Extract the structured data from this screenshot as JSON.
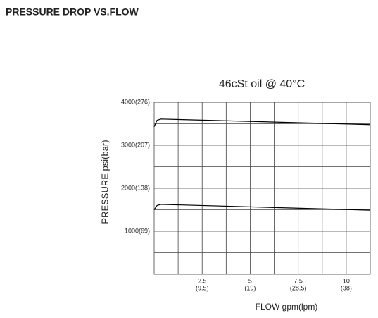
{
  "page_title": "PRESSURE DROP VS.FLOW",
  "chart_data": {
    "type": "line",
    "title": "46cSt oil @ 40°C",
    "xlabel": "FLOW gpm(lpm)",
    "ylabel": "PRESSURE   psi(bar)",
    "series": [
      {
        "color": "#000000",
        "x": [
          0,
          0.15,
          0.35,
          11.25
        ],
        "values": [
          3430,
          3580,
          3610,
          3480
        ]
      },
      {
        "color": "#000000",
        "x": [
          0,
          0.15,
          0.35,
          11.25
        ],
        "values": [
          1500,
          1600,
          1625,
          1490
        ]
      }
    ],
    "xlim": [
      0,
      11.25
    ],
    "xticks": [
      {
        "value": 2.5,
        "label": "2.5"
      },
      {
        "value": 5,
        "label": "5"
      },
      {
        "value": 7.5,
        "label": "7.5"
      },
      {
        "value": 10,
        "label": "10"
      }
    ],
    "xticks_secondary_labels": [
      "(9.5)",
      "(19)",
      "(28.5)",
      "(38)"
    ],
    "xminor_ticks": [
      1.25,
      3.75,
      6.25,
      8.75
    ],
    "ylim": [
      0,
      4000
    ],
    "yticks": [
      {
        "value": 1000,
        "label": "1000(69)"
      },
      {
        "value": 2000,
        "label": "2000(138)"
      },
      {
        "value": 3000,
        "label": "3000(207)"
      },
      {
        "value": 4000,
        "label": "4000(276)"
      }
    ],
    "yminor_ticks": [
      500,
      1500,
      2500,
      3500
    ],
    "grid": true
  }
}
